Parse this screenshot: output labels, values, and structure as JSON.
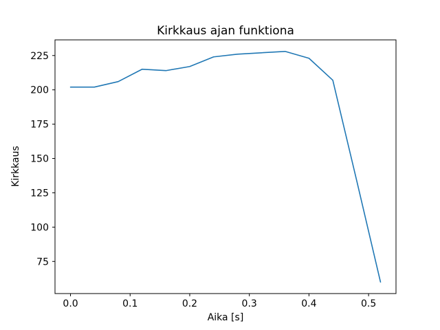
{
  "chart_data": {
    "type": "line",
    "title": "Kirkkaus ajan funktiona",
    "xlabel": "Aika [s]",
    "ylabel": "Kirkkaus",
    "x": [
      0.0,
      0.04,
      0.08,
      0.12,
      0.16,
      0.2,
      0.24,
      0.28,
      0.32,
      0.36,
      0.4,
      0.44,
      0.48,
      0.52
    ],
    "y": [
      202,
      202,
      206,
      215,
      214,
      217,
      224,
      226,
      227,
      228,
      223,
      207,
      134,
      60
    ],
    "xticks": [
      "0.0",
      "0.1",
      "0.2",
      "0.3",
      "0.4",
      "0.5"
    ],
    "xtick_values": [
      0.0,
      0.1,
      0.2,
      0.3,
      0.4,
      0.5
    ],
    "yticks": [
      "75",
      "100",
      "125",
      "150",
      "175",
      "200",
      "225"
    ],
    "ytick_values": [
      75,
      100,
      125,
      150,
      175,
      200,
      225
    ],
    "xlim": [
      -0.026,
      0.546
    ],
    "ylim": [
      51.6,
      236.4
    ],
    "line_color": "#1f77b4",
    "axis_color": "#000000",
    "background_color": "#ffffff",
    "grid": false,
    "legend_position": "none"
  }
}
